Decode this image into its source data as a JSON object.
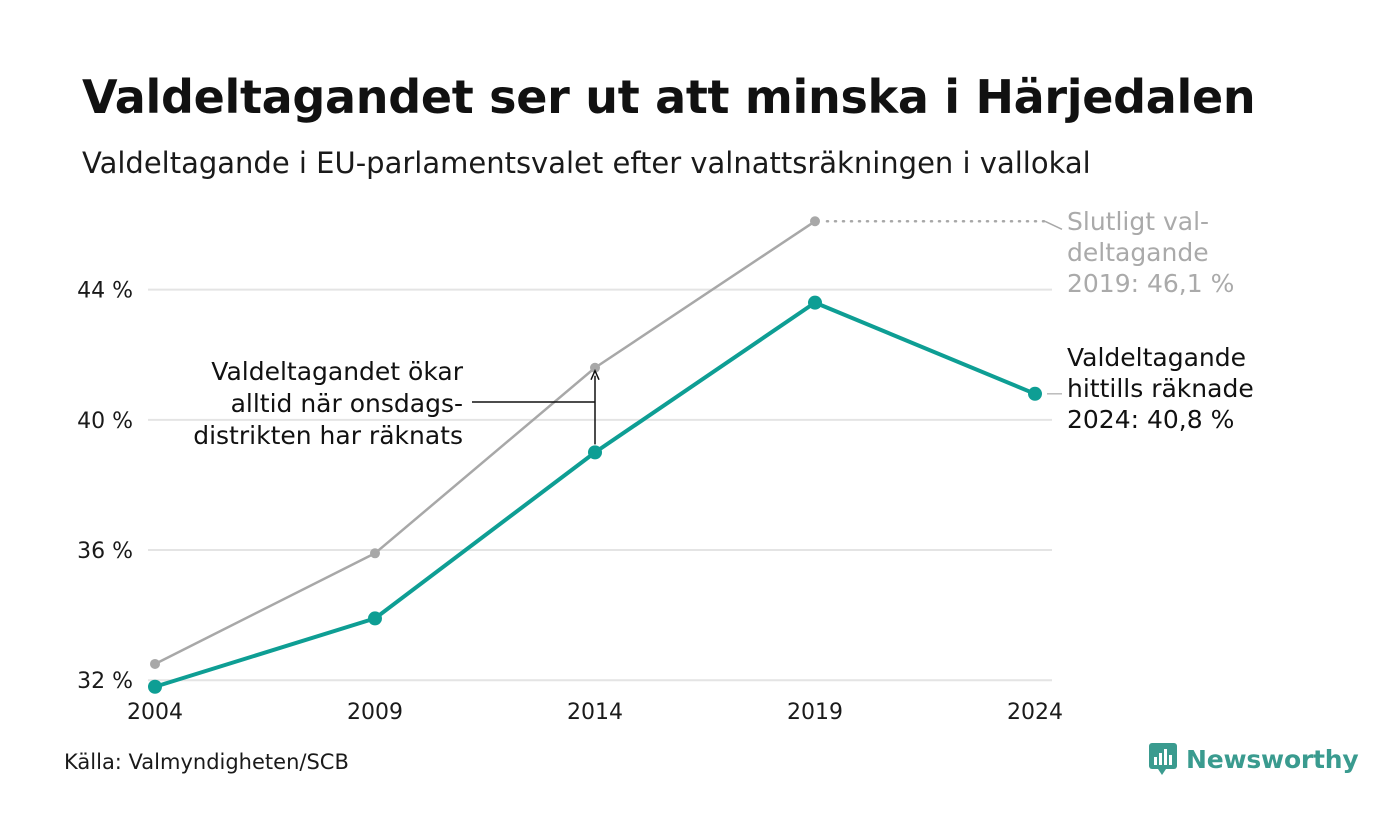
{
  "title": "Valdeltagandet ser ut att minska i Härjedalen",
  "subtitle": "Valdeltagande i EU-parlamentsvalet efter valnattsräkningen i vallokal",
  "source": "Källa: Valmyndigheten/SCB",
  "brand": "Newsworthy",
  "colors": {
    "current": "#0e9e94",
    "final": "#a8a8a8",
    "grid": "#e4e4e4",
    "brand": "#3a9b8f"
  },
  "chart_data": {
    "type": "line",
    "x": [
      2004,
      2009,
      2014,
      2019,
      2024
    ],
    "x_tick_labels": [
      "2004",
      "2009",
      "2014",
      "2019",
      "2024"
    ],
    "y_ticks": [
      32,
      36,
      40,
      44
    ],
    "y_tick_labels": [
      "32 %",
      "36 %",
      "40 %",
      "44 %"
    ],
    "ylim": [
      31.7,
      46.6
    ],
    "grid": true,
    "series": [
      {
        "key": "final",
        "values": [
          32.5,
          35.9,
          41.6,
          46.1,
          null
        ]
      },
      {
        "key": "current",
        "values": [
          31.8,
          33.9,
          39.0,
          43.6,
          40.8
        ]
      }
    ],
    "annotations": {
      "final_label": [
        "Slutligt val-",
        "deltagande",
        "2019: 46,1 %"
      ],
      "current_label": [
        "Valdeltagande",
        "hittills räknade",
        "2024: 40,8 %"
      ],
      "gap_label": [
        "Valdeltagandet ökar",
        "alltid när onsdags-",
        "distrikten har räknats"
      ]
    }
  }
}
